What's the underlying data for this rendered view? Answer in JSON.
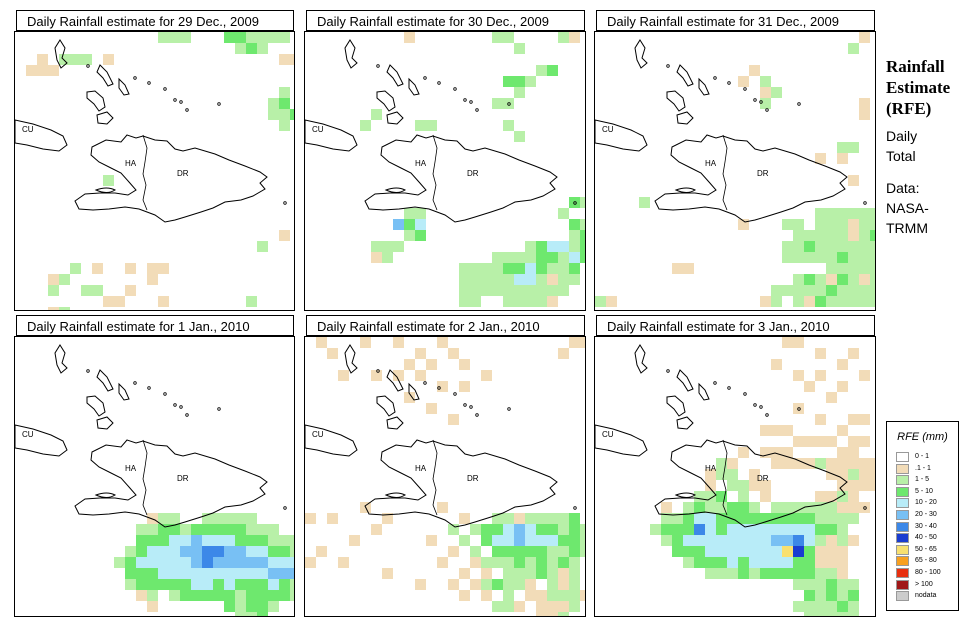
{
  "panels": [
    {
      "title": "Daily Rainfall estimate for  29 Dec., 2009"
    },
    {
      "title": "Daily Rainfall estimate for  30 Dec., 2009"
    },
    {
      "title": "Daily Rainfall estimate for  31 Dec., 2009"
    },
    {
      "title": "Daily Rainfall estimate for  1 Jan., 2010"
    },
    {
      "title": "Daily Rainfall estimate for  2 Jan., 2010"
    },
    {
      "title": "Daily Rainfall estimate for  3 Jan., 2010"
    }
  ],
  "map_labels": {
    "cuba": "CU",
    "haiti": "HA",
    "dominican_republic": "DR"
  },
  "side": {
    "heading_1": "Rainfall",
    "heading_2": "Estimate",
    "heading_3": "(RFE)",
    "line_1": "Daily",
    "line_2": "Total",
    "line_3": "Data:",
    "line_4": "NASA-",
    "line_5": "TRMM"
  },
  "legend": {
    "title": "RFE (mm)",
    "items": [
      {
        "label": "0 - 1",
        "color": "#ffffff"
      },
      {
        "label": ".1 - 1",
        "color": "#f2dcb8"
      },
      {
        "label": "1 - 5",
        "color": "#b8f0a8"
      },
      {
        "label": "5 - 10",
        "color": "#6ee86e"
      },
      {
        "label": "10 - 20",
        "color": "#b8ecf8"
      },
      {
        "label": "20 - 30",
        "color": "#78c0f4"
      },
      {
        "label": "30 - 40",
        "color": "#3c88e8"
      },
      {
        "label": "40 - 50",
        "color": "#1a3cd0"
      },
      {
        "label": "50 - 65",
        "color": "#f8e070"
      },
      {
        "label": "65 - 80",
        "color": "#f8a020"
      },
      {
        "label": "80 - 100",
        "color": "#e83010"
      },
      {
        "label": "> 100",
        "color": "#a01818"
      },
      {
        "label": "nodata",
        "color": "#cccccc"
      }
    ]
  }
}
